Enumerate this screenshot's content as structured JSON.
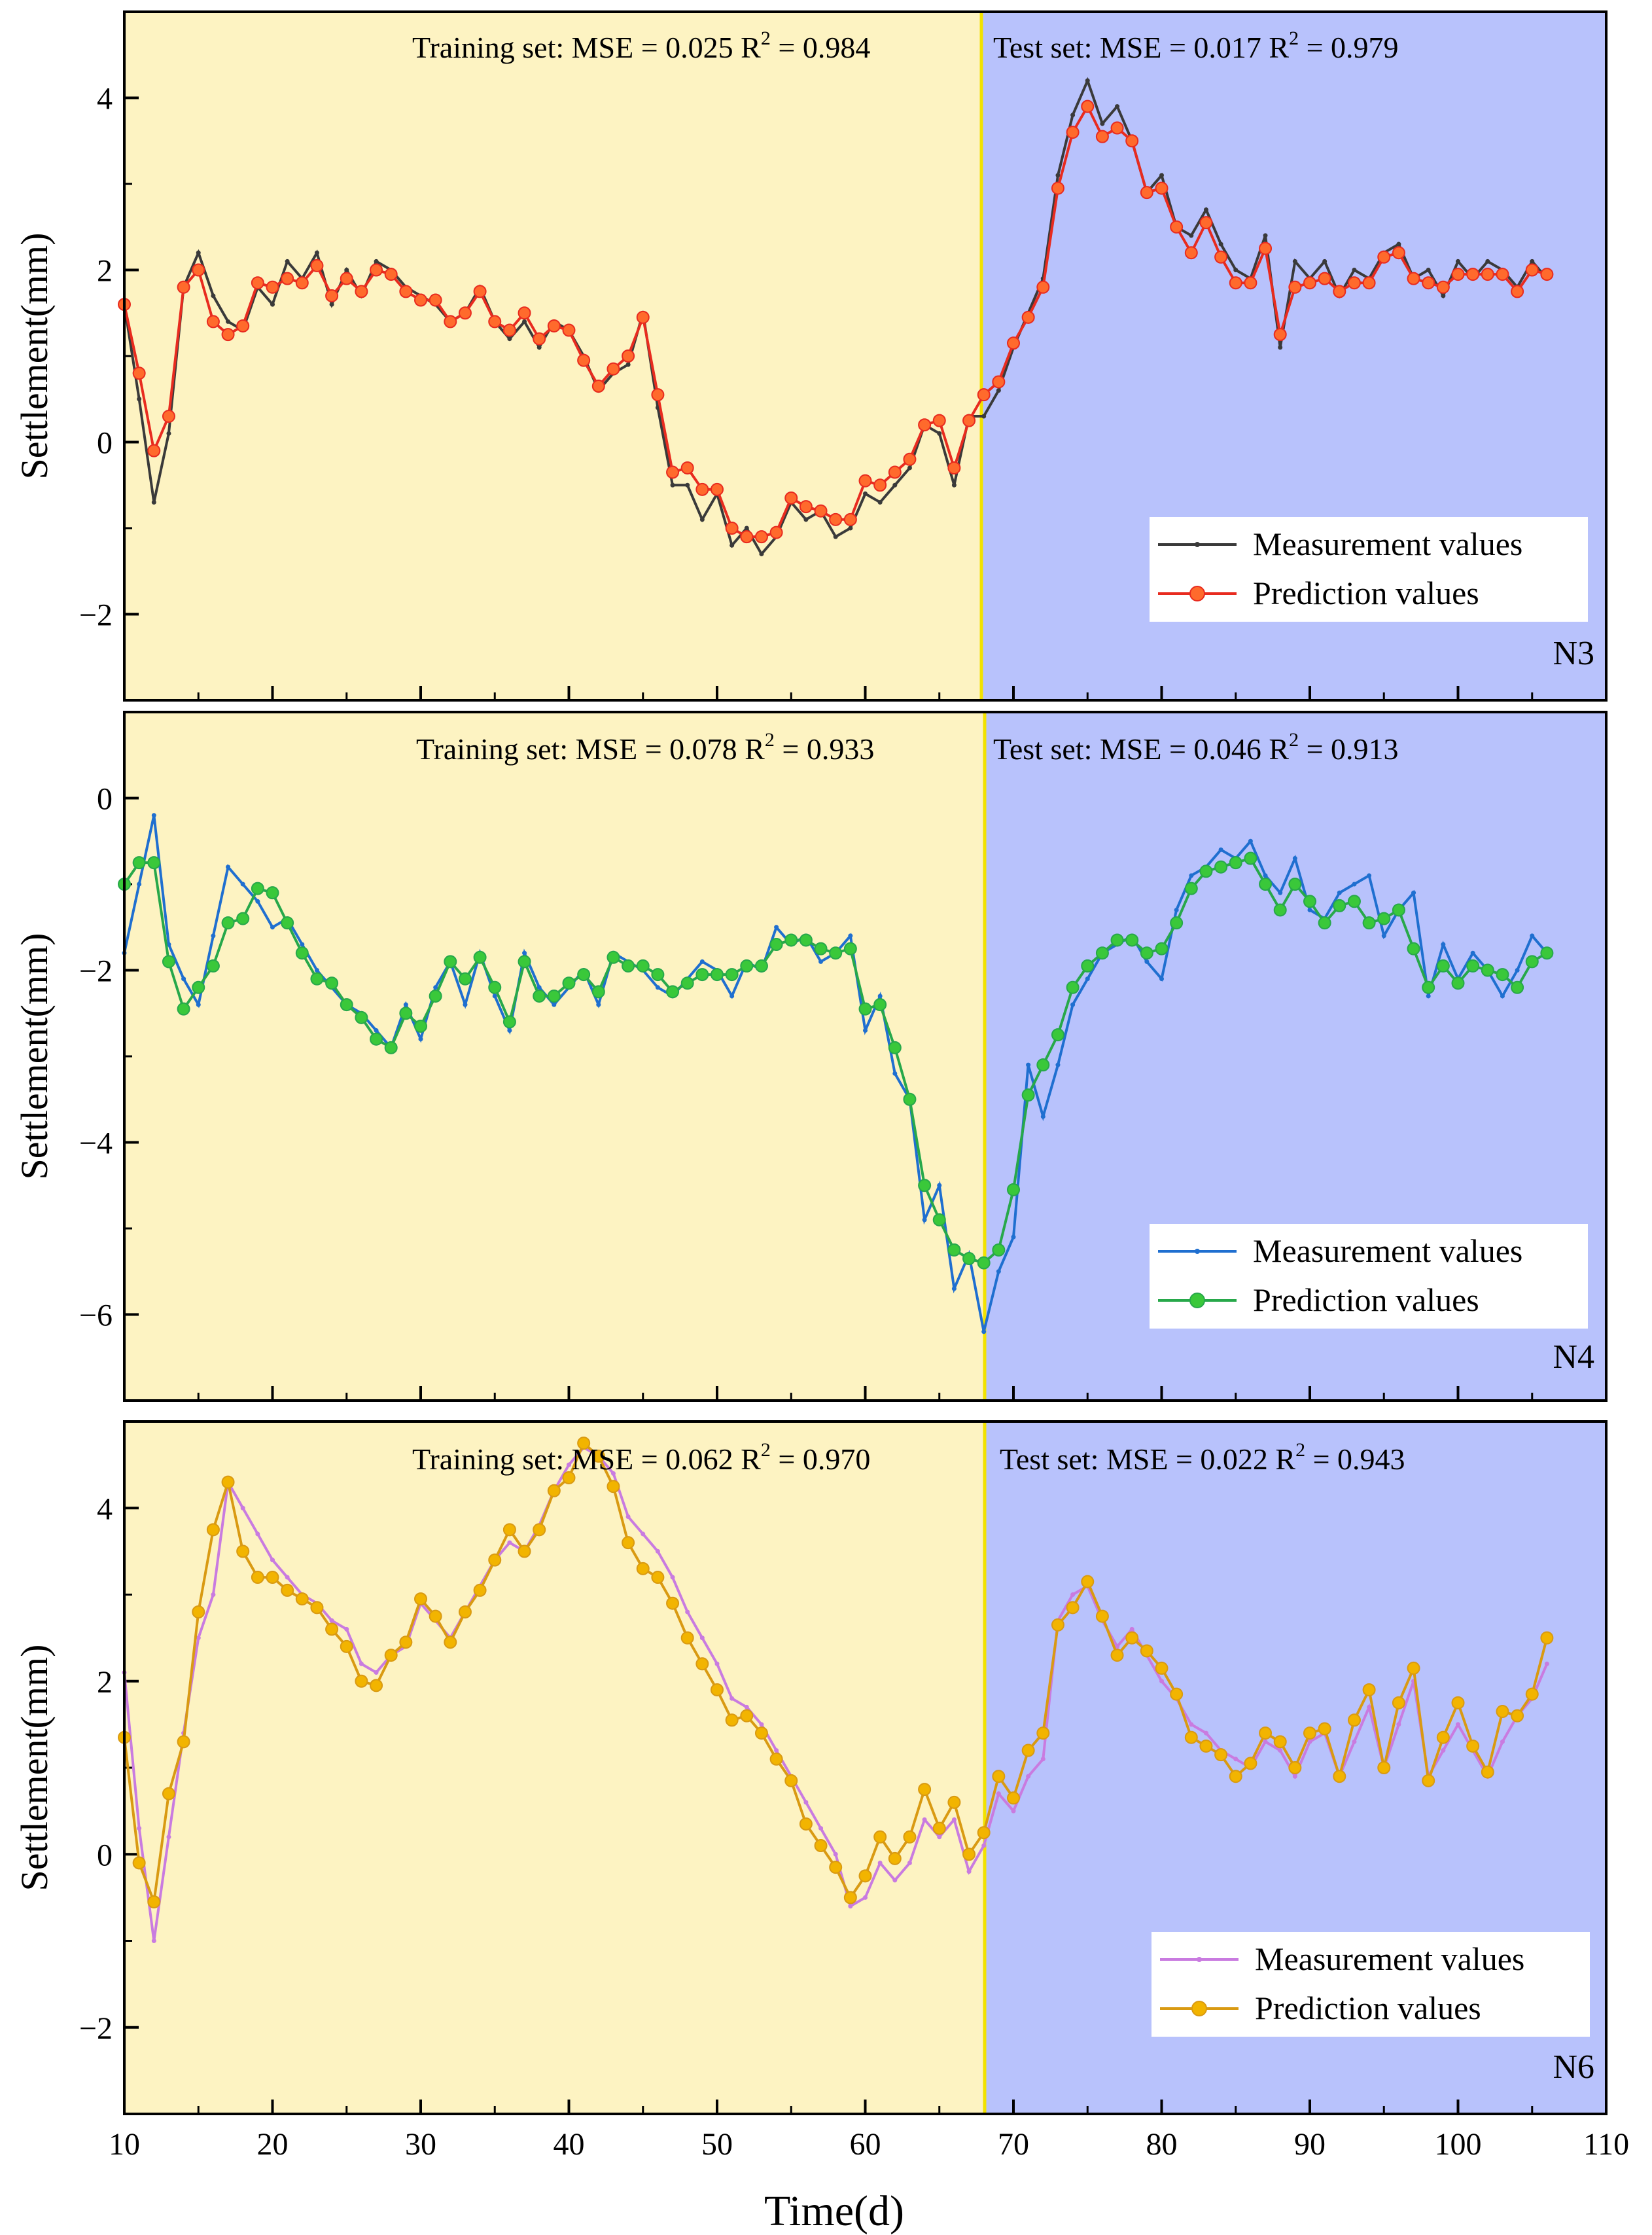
{
  "chart_data": {
    "type": "line",
    "xlabel": "Time(d)",
    "xlim": [
      10,
      110
    ],
    "xticks": [
      10,
      20,
      30,
      40,
      50,
      60,
      70,
      80,
      90,
      100,
      110
    ],
    "split_x": 68,
    "colors": {
      "train_region": "#fdf3c2",
      "test_region": "#b8c2fc",
      "split_line": "#f2e200"
    },
    "panels": [
      {
        "id": "N3",
        "tag": "N3",
        "ylabel": "Settlement(mm)",
        "ylim": [
          -3,
          5
        ],
        "yticks": [
          4,
          2,
          0,
          -2
        ],
        "ytick_labels": [
          "4",
          "2",
          "0",
          "−2"
        ],
        "train_text": {
          "prefix": "Training set: MSE = 0.025  R",
          "sup": "2",
          "suffix": " = 0.984"
        },
        "test_text": {
          "prefix": "Test set: MSE = 0.017  R",
          "sup": "2",
          "suffix": " = 0.979"
        },
        "legend": {
          "measured": "Measurement values",
          "predicted": "Prediction  values"
        },
        "colors": {
          "measured": "#3a3a3a",
          "predicted": "#e82b1f",
          "marker": "#ff6a2c"
        },
        "x_start": 10,
        "measured": [
          1.6,
          0.5,
          -0.7,
          0.1,
          1.8,
          2.2,
          1.7,
          1.4,
          1.3,
          1.8,
          1.6,
          2.1,
          1.9,
          2.2,
          1.6,
          2.0,
          1.7,
          2.1,
          2.0,
          1.8,
          1.7,
          1.6,
          1.4,
          1.5,
          1.8,
          1.4,
          1.2,
          1.4,
          1.1,
          1.4,
          1.3,
          1.0,
          0.6,
          0.8,
          0.9,
          1.5,
          0.4,
          -0.5,
          -0.5,
          -0.9,
          -0.6,
          -1.2,
          -1.0,
          -1.3,
          -1.1,
          -0.7,
          -0.9,
          -0.8,
          -1.1,
          -1.0,
          -0.6,
          -0.7,
          -0.5,
          -0.3,
          0.2,
          0.1,
          -0.5,
          0.3,
          0.3,
          0.6,
          1.1,
          1.5,
          1.9,
          3.1,
          3.8,
          4.2,
          3.7,
          3.9,
          3.5,
          2.9,
          3.1,
          2.5,
          2.4,
          2.7,
          2.3,
          2.0,
          1.9,
          2.4,
          1.1,
          2.1,
          1.9,
          2.1,
          1.7,
          2.0,
          1.9,
          2.2,
          2.3,
          1.9,
          2.0,
          1.7,
          2.1,
          1.9,
          2.1,
          2.0,
          1.8,
          2.1,
          1.9
        ],
        "predicted": [
          1.6,
          0.8,
          -0.1,
          0.3,
          1.8,
          2.0,
          1.4,
          1.25,
          1.35,
          1.85,
          1.8,
          1.9,
          1.85,
          2.05,
          1.7,
          1.9,
          1.75,
          2.0,
          1.95,
          1.75,
          1.65,
          1.65,
          1.4,
          1.5,
          1.75,
          1.4,
          1.3,
          1.5,
          1.2,
          1.35,
          1.3,
          0.95,
          0.65,
          0.85,
          1.0,
          1.45,
          0.55,
          -0.35,
          -0.3,
          -0.55,
          -0.55,
          -1.0,
          -1.1,
          -1.1,
          -1.05,
          -0.65,
          -0.75,
          -0.8,
          -0.9,
          -0.9,
          -0.45,
          -0.5,
          -0.35,
          -0.2,
          0.2,
          0.25,
          -0.3,
          0.25,
          0.55,
          0.7,
          1.15,
          1.45,
          1.8,
          2.95,
          3.6,
          3.9,
          3.55,
          3.65,
          3.5,
          2.9,
          2.95,
          2.5,
          2.2,
          2.55,
          2.15,
          1.85,
          1.85,
          2.25,
          1.25,
          1.8,
          1.85,
          1.9,
          1.75,
          1.85,
          1.85,
          2.15,
          2.2,
          1.9,
          1.85,
          1.8,
          1.95,
          1.95,
          1.95,
          1.95,
          1.75,
          2.0,
          1.95
        ]
      },
      {
        "id": "N4",
        "tag": "N4",
        "ylabel": "Settlement(mm)",
        "ylim": [
          -7,
          1
        ],
        "yticks": [
          0,
          -2,
          -4,
          -6
        ],
        "ytick_labels": [
          "0",
          "−2",
          "−4",
          "−6"
        ],
        "train_text": {
          "prefix": "Training set: MSE = 0.078  R",
          "sup": "2",
          "suffix": " = 0.933"
        },
        "test_text": {
          "prefix": "Test set: MSE = 0.046  R",
          "sup": "2",
          "suffix": " = 0.913"
        },
        "legend": {
          "measured": "Measurement values",
          "predicted": "Prediction  values"
        },
        "colors": {
          "measured": "#1f6fd0",
          "predicted": "#27a84a",
          "marker": "#3ac83a"
        },
        "x_start": 10,
        "measured": [
          -1.8,
          -1.0,
          -0.2,
          -1.7,
          -2.1,
          -2.4,
          -1.6,
          -0.8,
          -1.0,
          -1.2,
          -1.5,
          -1.4,
          -1.7,
          -2.0,
          -2.2,
          -2.4,
          -2.5,
          -2.7,
          -2.9,
          -2.4,
          -2.8,
          -2.2,
          -1.9,
          -2.4,
          -1.8,
          -2.3,
          -2.7,
          -1.8,
          -2.2,
          -2.4,
          -2.2,
          -2.0,
          -2.4,
          -1.8,
          -1.9,
          -2.0,
          -2.2,
          -2.3,
          -2.1,
          -1.9,
          -2.0,
          -2.3,
          -1.9,
          -2.0,
          -1.5,
          -1.7,
          -1.6,
          -1.9,
          -1.8,
          -1.6,
          -2.7,
          -2.3,
          -3.2,
          -3.5,
          -4.9,
          -4.5,
          -5.7,
          -5.3,
          -6.2,
          -5.5,
          -5.1,
          -3.1,
          -3.7,
          -3.1,
          -2.4,
          -2.1,
          -1.8,
          -1.7,
          -1.6,
          -1.9,
          -2.1,
          -1.3,
          -0.9,
          -0.8,
          -0.6,
          -0.7,
          -0.5,
          -0.9,
          -1.1,
          -0.7,
          -1.3,
          -1.4,
          -1.1,
          -1.0,
          -0.9,
          -1.6,
          -1.3,
          -1.1,
          -2.3,
          -1.7,
          -2.1,
          -1.8,
          -2.0,
          -2.3,
          -2.0,
          -1.6,
          -1.8
        ],
        "predicted": [
          -1.0,
          -0.75,
          -0.75,
          -1.9,
          -2.45,
          -2.2,
          -1.95,
          -1.45,
          -1.4,
          -1.05,
          -1.1,
          -1.45,
          -1.8,
          -2.1,
          -2.15,
          -2.4,
          -2.55,
          -2.8,
          -2.9,
          -2.5,
          -2.65,
          -2.3,
          -1.9,
          -2.1,
          -1.85,
          -2.2,
          -2.6,
          -1.9,
          -2.3,
          -2.3,
          -2.15,
          -2.05,
          -2.25,
          -1.85,
          -1.95,
          -1.95,
          -2.05,
          -2.25,
          -2.15,
          -2.05,
          -2.05,
          -2.05,
          -1.95,
          -1.95,
          -1.7,
          -1.65,
          -1.65,
          -1.75,
          -1.8,
          -1.75,
          -2.45,
          -2.4,
          -2.9,
          -3.5,
          -4.5,
          -4.9,
          -5.25,
          -5.35,
          -5.4,
          -5.25,
          -4.55,
          -3.45,
          -3.1,
          -2.75,
          -2.2,
          -1.95,
          -1.8,
          -1.65,
          -1.65,
          -1.8,
          -1.75,
          -1.45,
          -1.05,
          -0.85,
          -0.8,
          -0.75,
          -0.7,
          -1.0,
          -1.3,
          -1.0,
          -1.2,
          -1.45,
          -1.25,
          -1.2,
          -1.45,
          -1.4,
          -1.3,
          -1.75,
          -2.2,
          -1.95,
          -2.15,
          -1.95,
          -2.0,
          -2.05,
          -2.2,
          -1.9,
          -1.8
        ]
      },
      {
        "id": "N6",
        "tag": "N6",
        "ylabel": "Settlement(mm)",
        "ylim": [
          -3,
          5
        ],
        "yticks": [
          4,
          2,
          0,
          -2
        ],
        "ytick_labels": [
          "4",
          "2",
          "0",
          "−2"
        ],
        "train_text": {
          "prefix": "Training set: MSE = 0.062  R",
          "sup": "2",
          "suffix": " = 0.970"
        },
        "test_text": {
          "prefix": "Test set: MSE = 0.022  R",
          "sup": "2",
          "suffix": " = 0.943"
        },
        "legend": {
          "measured": "Measurement values",
          "predicted": "Prediction  values"
        },
        "colors": {
          "measured": "#c97be0",
          "predicted": "#d99a12",
          "marker": "#f2b400"
        },
        "x_start": 10,
        "measured": [
          2.1,
          0.3,
          -1.0,
          0.2,
          1.4,
          2.5,
          3.0,
          4.3,
          4.0,
          3.7,
          3.4,
          3.2,
          3.0,
          2.9,
          2.7,
          2.6,
          2.2,
          2.1,
          2.3,
          2.4,
          2.9,
          2.7,
          2.5,
          2.8,
          3.1,
          3.4,
          3.6,
          3.5,
          3.8,
          4.2,
          4.5,
          4.7,
          4.6,
          4.4,
          3.9,
          3.7,
          3.5,
          3.2,
          2.8,
          2.5,
          2.2,
          1.8,
          1.7,
          1.5,
          1.2,
          0.9,
          0.6,
          0.3,
          0.0,
          -0.6,
          -0.5,
          -0.1,
          -0.3,
          -0.1,
          0.4,
          0.2,
          0.4,
          -0.2,
          0.1,
          0.7,
          0.5,
          0.9,
          1.1,
          2.7,
          3.0,
          3.1,
          2.7,
          2.4,
          2.6,
          2.3,
          2.0,
          1.8,
          1.5,
          1.4,
          1.2,
          1.1,
          1.0,
          1.3,
          1.2,
          0.9,
          1.3,
          1.4,
          0.9,
          1.3,
          1.7,
          1.0,
          1.5,
          2.0,
          0.9,
          1.2,
          1.5,
          1.2,
          0.9,
          1.3,
          1.6,
          1.8,
          2.2
        ],
        "predicted": [
          1.35,
          -0.1,
          -0.55,
          0.7,
          1.3,
          2.8,
          3.75,
          4.3,
          3.5,
          3.2,
          3.2,
          3.05,
          2.95,
          2.85,
          2.6,
          2.4,
          2.0,
          1.95,
          2.3,
          2.45,
          2.95,
          2.75,
          2.45,
          2.8,
          3.05,
          3.4,
          3.75,
          3.5,
          3.75,
          4.2,
          4.35,
          4.75,
          4.6,
          4.25,
          3.6,
          3.3,
          3.2,
          2.9,
          2.5,
          2.2,
          1.9,
          1.55,
          1.6,
          1.4,
          1.1,
          0.85,
          0.35,
          0.1,
          -0.15,
          -0.5,
          -0.25,
          0.2,
          -0.05,
          0.2,
          0.75,
          0.3,
          0.6,
          0.0,
          0.25,
          0.9,
          0.65,
          1.2,
          1.4,
          2.65,
          2.85,
          3.15,
          2.75,
          2.3,
          2.5,
          2.35,
          2.15,
          1.85,
          1.35,
          1.25,
          1.15,
          0.9,
          1.05,
          1.4,
          1.3,
          1.0,
          1.4,
          1.45,
          0.9,
          1.55,
          1.9,
          1.0,
          1.75,
          2.15,
          0.85,
          1.35,
          1.75,
          1.25,
          0.95,
          1.65,
          1.6,
          1.85,
          2.5
        ]
      }
    ]
  }
}
